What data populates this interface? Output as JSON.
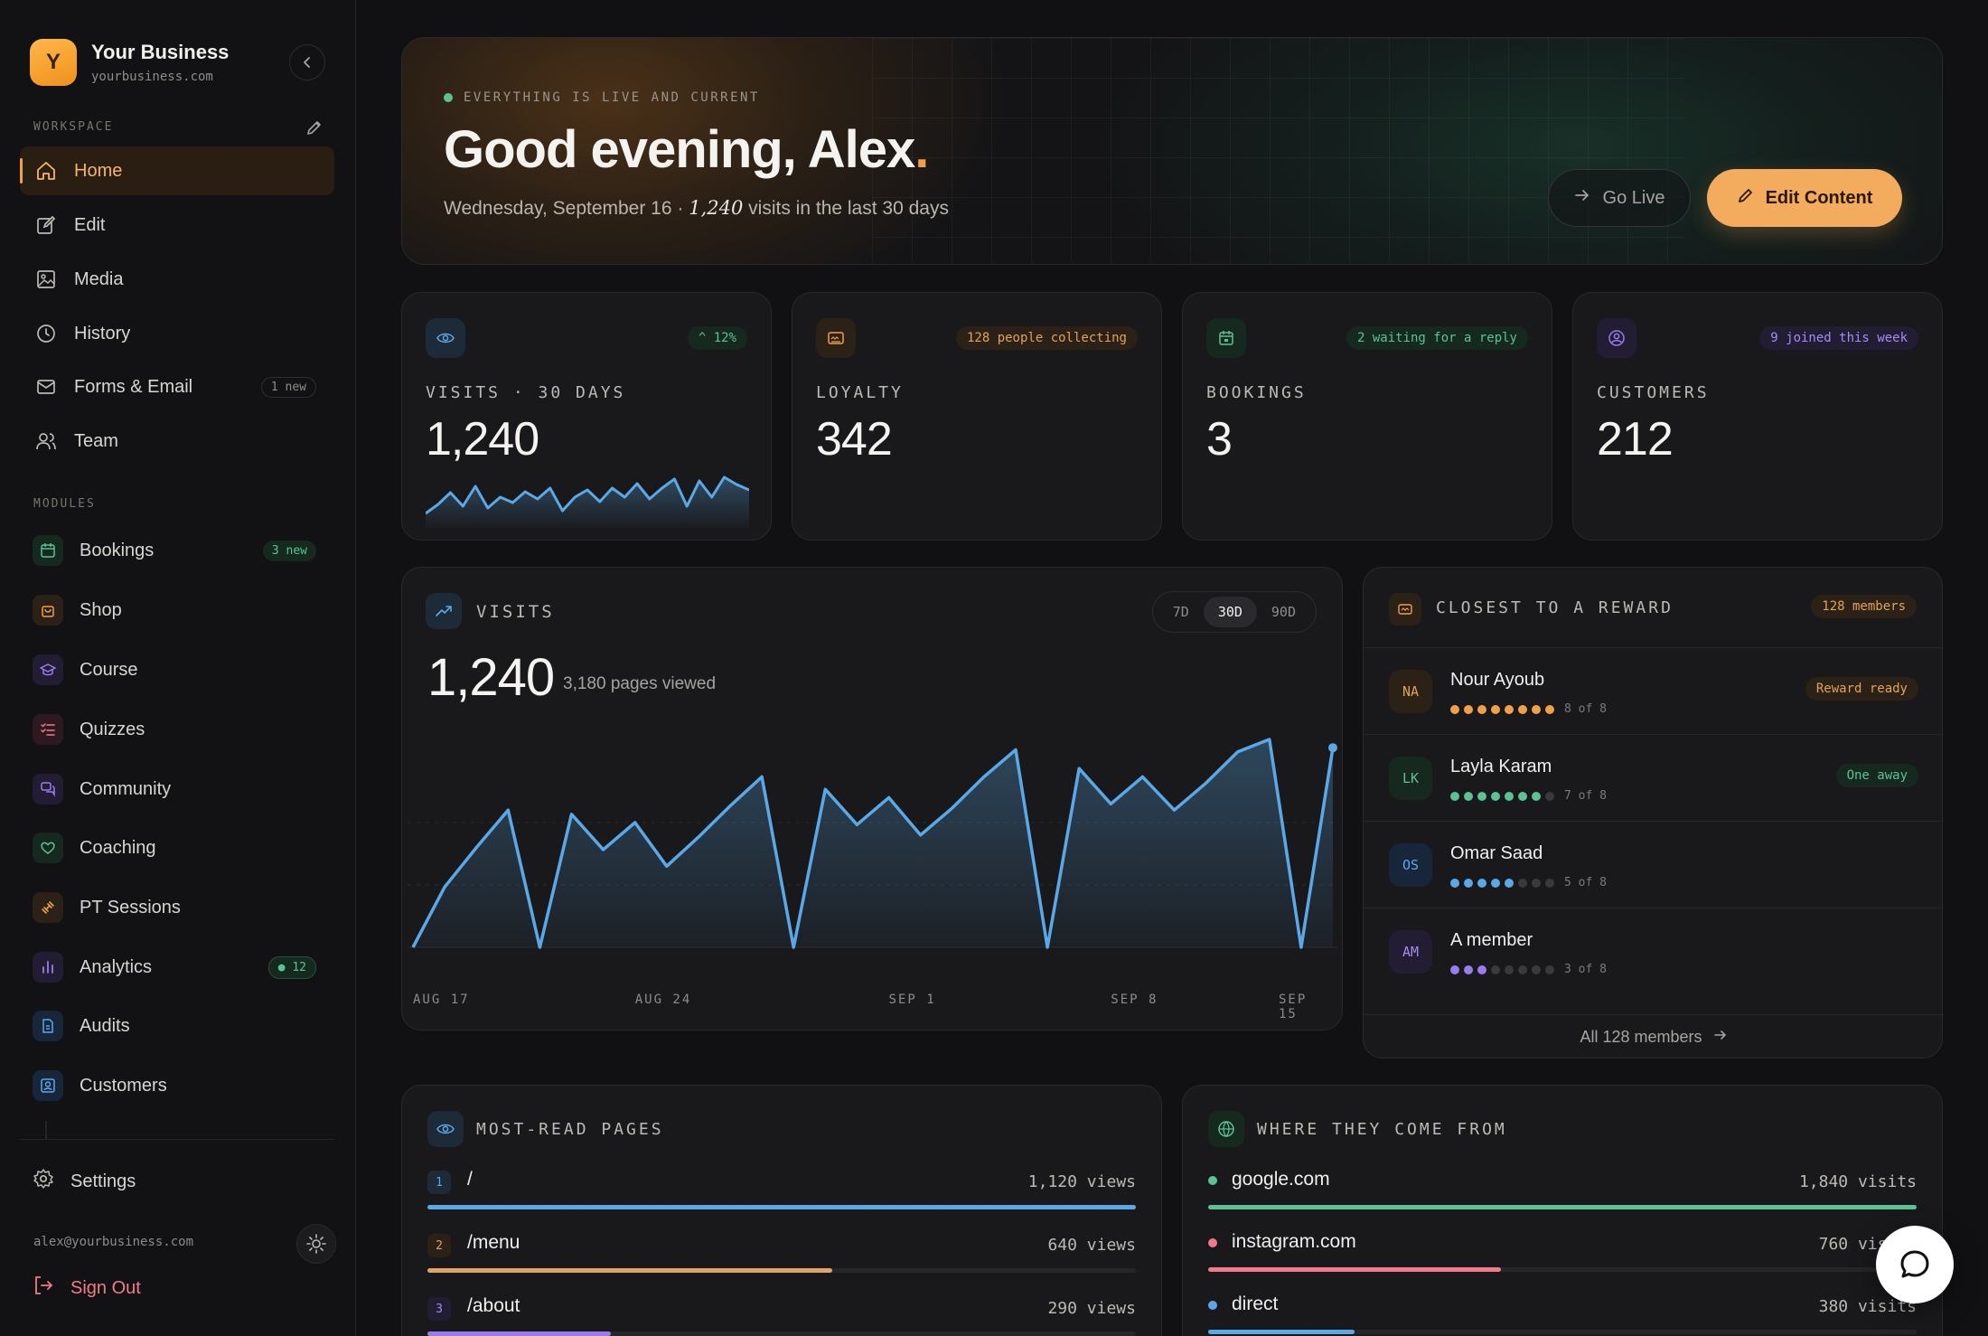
{
  "brand": {
    "initial": "Y",
    "name": "Your Business",
    "url": "yourbusiness.com"
  },
  "sidebar": {
    "workspace_label": "WORKSPACE",
    "workspace_items": [
      {
        "label": "Home",
        "icon": "home-icon",
        "active": true
      },
      {
        "label": "Edit",
        "icon": "edit-icon"
      },
      {
        "label": "Media",
        "icon": "image-icon"
      },
      {
        "label": "History",
        "icon": "clock-icon"
      },
      {
        "label": "Forms & Email",
        "icon": "mail-icon",
        "badge": "1 new"
      },
      {
        "label": "Team",
        "icon": "users-icon"
      }
    ],
    "modules_label": "MODULES",
    "module_items": [
      {
        "label": "Bookings",
        "icon": "calendar-icon",
        "badge": "3 new",
        "color": "#5cc193"
      },
      {
        "label": "Shop",
        "icon": "bag-icon",
        "color": "#f0a04a"
      },
      {
        "label": "Course",
        "icon": "graduation-cap-icon",
        "color": "#9a7cf0"
      },
      {
        "label": "Quizzes",
        "icon": "checklist-icon",
        "color": "#f27a8a"
      },
      {
        "label": "Community",
        "icon": "chat-bubbles-icon",
        "color": "#9a7cf0"
      },
      {
        "label": "Coaching",
        "icon": "heart-icon",
        "color": "#5cc193"
      },
      {
        "label": "PT Sessions",
        "icon": "dumbbell-icon",
        "color": "#f0a04a"
      },
      {
        "label": "Analytics",
        "icon": "bar-chart-icon",
        "badge": "12",
        "color": "#9a7cf0"
      },
      {
        "label": "Audits",
        "icon": "document-icon",
        "color": "#5aa9e6"
      },
      {
        "label": "Customers",
        "icon": "contact-icon",
        "color": "#5aa9e6"
      }
    ],
    "settings_label": "Settings",
    "email": "alex@yourbusiness.com",
    "signout_label": "Sign Out"
  },
  "hero": {
    "status": "EVERYTHING IS LIVE AND CURRENT",
    "greeting": "Good evening, Alex",
    "greeting_punct": ".",
    "date": "Wednesday, September 16 · ",
    "visits_count": "1,240",
    "visits_suffix": " visits in the last 30 days",
    "go_live_label": "Go Live",
    "edit_content_label": "Edit Content"
  },
  "stats": [
    {
      "label": "VISITS · 30 DAYS",
      "value": "1,240",
      "pill": "12%",
      "icon": "eye-icon",
      "color": "#5aa9e6"
    },
    {
      "label": "LOYALTY",
      "value": "342",
      "pill": "128 people collecting",
      "icon": "card-icon",
      "color": "#f0a04a"
    },
    {
      "label": "BOOKINGS",
      "value": "3",
      "pill": "2 waiting for a reply",
      "icon": "calendar-icon",
      "color": "#5cc193"
    },
    {
      "label": "CUSTOMERS",
      "value": "212",
      "pill": "9 joined this week",
      "icon": "user-circle-icon",
      "color": "#9a7cf0"
    }
  ],
  "visits_panel": {
    "title": "VISITS",
    "ranges": [
      "7D",
      "30D",
      "90D"
    ],
    "selected_range": "30D",
    "total": "1,240",
    "pages_viewed": "3,180 pages viewed",
    "x_labels": [
      "AUG 17",
      "AUG 24",
      "SEP 1",
      "SEP 8",
      "SEP 15"
    ]
  },
  "chart_data": {
    "type": "area",
    "x": [
      "Aug 17",
      "Aug 18",
      "Aug 19",
      "Aug 20",
      "Aug 21",
      "Aug 22",
      "Aug 23",
      "Aug 24",
      "Aug 25",
      "Aug 26",
      "Aug 27",
      "Aug 28",
      "Aug 29",
      "Aug 30",
      "Aug 31",
      "Sep 1",
      "Sep 2",
      "Sep 3",
      "Sep 4",
      "Sep 5",
      "Sep 6",
      "Sep 7",
      "Sep 8",
      "Sep 9",
      "Sep 10",
      "Sep 11",
      "Sep 12",
      "Sep 13",
      "Sep 14",
      "Sep 15"
    ],
    "values": [
      0,
      29,
      48,
      66,
      0,
      64,
      47,
      60,
      39,
      53,
      68,
      82,
      0,
      76,
      59,
      72,
      54,
      67,
      82,
      95,
      0,
      86,
      69,
      82,
      66,
      79,
      94,
      100,
      0,
      96
    ],
    "x_labels": [
      "AUG 17",
      "AUG 24",
      "SEP 1",
      "SEP 8",
      "SEP 15"
    ],
    "ylim": [
      0,
      100
    ],
    "grid": false,
    "color": "#5aa9e6"
  },
  "sparkline": [
    12,
    22,
    35,
    20,
    42,
    18,
    30,
    24,
    36,
    28,
    40,
    15,
    30,
    38,
    25,
    40,
    30,
    45,
    28,
    40,
    50,
    20,
    48,
    30,
    52,
    44,
    38
  ],
  "reward": {
    "title": "CLOSEST TO A REWARD",
    "pill": "128 members",
    "members": [
      {
        "initials": "NA",
        "name": "Nour Ayoub",
        "filled": 8,
        "total": 8,
        "progress": "8 of 8",
        "tag": "Reward ready",
        "color": "#f0a04a"
      },
      {
        "initials": "LK",
        "name": "Layla Karam",
        "filled": 7,
        "total": 8,
        "progress": "7 of 8",
        "tag": "One away",
        "color": "#5cc193"
      },
      {
        "initials": "OS",
        "name": "Omar Saad",
        "filled": 5,
        "total": 8,
        "progress": "5 of 8",
        "color": "#5aa9e6"
      },
      {
        "initials": "AM",
        "name": "A member",
        "filled": 3,
        "total": 8,
        "progress": "3 of 8",
        "color": "#9a7cf0"
      }
    ],
    "all_link": "All 128 members"
  },
  "most_read": {
    "title": "MOST-READ PAGES",
    "rows": [
      {
        "rank": "1",
        "path": "/",
        "views": "1,120 views",
        "share": 1.0,
        "color": "#5aa9e6"
      },
      {
        "rank": "2",
        "path": "/menu",
        "views": "640 views",
        "share": 0.571,
        "color": "#e0a36a"
      },
      {
        "rank": "3",
        "path": "/about",
        "views": "290 views",
        "share": 0.259,
        "color": "#9a7cf0"
      }
    ]
  },
  "sources": {
    "title": "WHERE THEY COME FROM",
    "rows": [
      {
        "name": "google.com",
        "visits": "1,840 visits",
        "share": 1.0,
        "color": "#5cc193"
      },
      {
        "name": "instagram.com",
        "visits": "760 visits",
        "share": 0.413,
        "color": "#f27a8a"
      },
      {
        "name": "direct",
        "visits": "380 visits",
        "share": 0.207,
        "color": "#5aa9e6"
      }
    ]
  }
}
